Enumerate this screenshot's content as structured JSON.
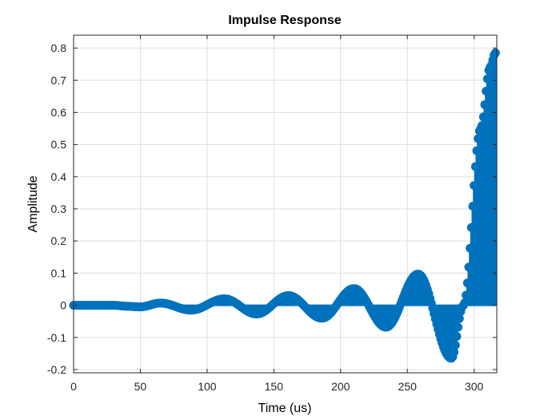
{
  "chart_data": {
    "type": "stem",
    "title": "Impulse Response",
    "xlabel": "Time (us)",
    "ylabel": "Amplitude",
    "xlim": [
      0,
      317
    ],
    "ylim": [
      -0.21,
      0.84
    ],
    "xticks": [
      0,
      50,
      100,
      150,
      200,
      250,
      300
    ],
    "yticks": [
      -0.2,
      -0.1,
      0,
      0.1,
      0.2,
      0.3,
      0.4,
      0.5,
      0.6,
      0.7,
      0.8
    ],
    "ytick_labels": [
      "-0.2",
      "-0.1",
      "0",
      "0.1",
      "0.2",
      "0.3",
      "0.4",
      "0.5",
      "0.6",
      "0.7",
      "0.8"
    ],
    "grid": true,
    "sample_interval": 1,
    "series": [
      {
        "color": "#0072bd",
        "envelope": {
          "t": [
            0,
            30,
            40,
            50,
            65,
            88,
            113,
            137,
            161,
            186,
            210,
            234,
            258,
            283,
            292,
            305,
            312,
            316
          ],
          "amplitude": [
            0,
            0,
            -0.003,
            -0.005,
            0.007,
            -0.015,
            0.02,
            -0.027,
            0.03,
            -0.04,
            0.052,
            -0.068,
            0.097,
            -0.165,
            0,
            0.55,
            0.74,
            0.785
          ]
        }
      }
    ]
  }
}
